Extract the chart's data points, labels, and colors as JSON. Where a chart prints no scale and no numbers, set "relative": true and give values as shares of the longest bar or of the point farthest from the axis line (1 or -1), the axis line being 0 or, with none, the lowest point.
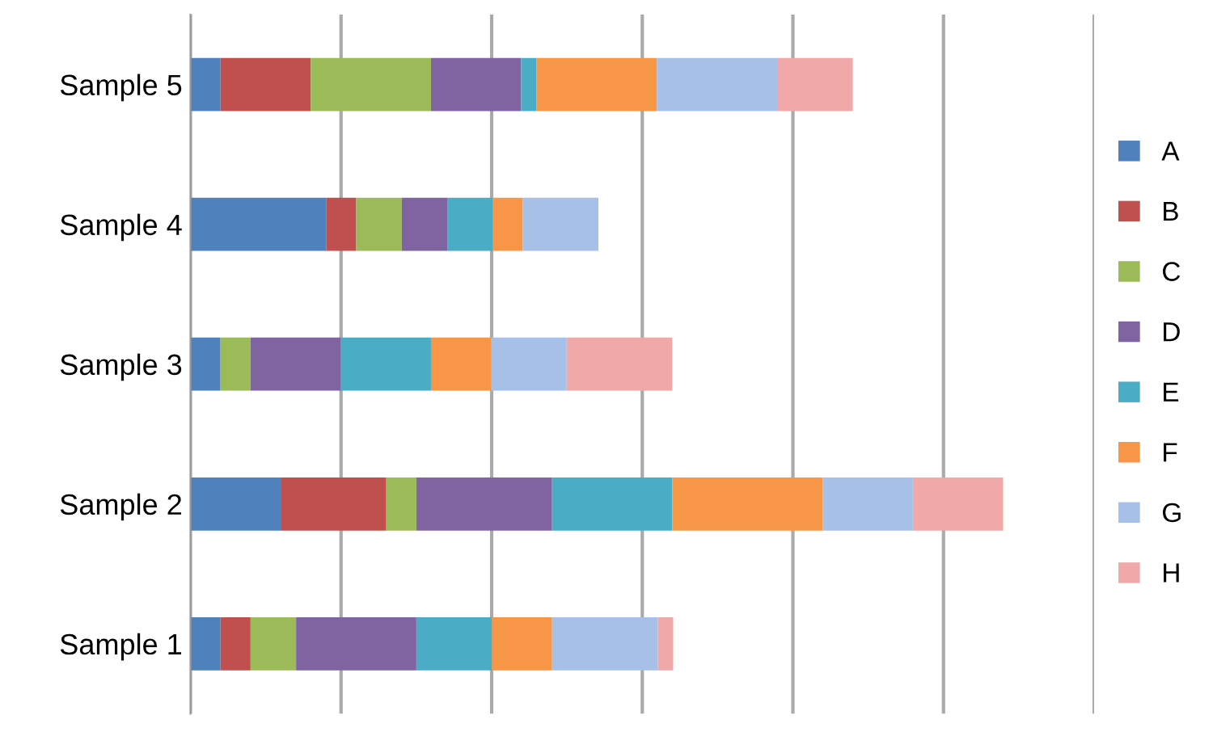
{
  "chart_data": {
    "type": "bar",
    "orientation": "horizontal",
    "stacked": true,
    "relative": true,
    "grid": "x",
    "legend": "right",
    "categories": [
      "Sample 5",
      "Sample 4",
      "Sample 3",
      "Sample 2",
      "Sample 1"
    ],
    "series": [
      {
        "name": "A",
        "color": "#4f81bd",
        "values": [
          0.037,
          0.167,
          0.037,
          0.111,
          0.037
        ]
      },
      {
        "name": "B",
        "color": "#c0504d",
        "values": [
          0.111,
          0.037,
          0,
          0.13,
          0.037
        ]
      },
      {
        "name": "C",
        "color": "#9bbb59",
        "values": [
          0.148,
          0.056,
          0.037,
          0.037,
          0.056
        ]
      },
      {
        "name": "D",
        "color": "#8064a2",
        "values": [
          0.111,
          0.056,
          0.111,
          0.167,
          0.148
        ]
      },
      {
        "name": "E",
        "color": "#4bacc6",
        "values": [
          0.019,
          0.056,
          0.111,
          0.148,
          0.093
        ]
      },
      {
        "name": "F",
        "color": "#f79646",
        "values": [
          0.148,
          0.037,
          0.074,
          0.185,
          0.074
        ]
      },
      {
        "name": "G",
        "color": "#a7c0e8",
        "values": [
          0.148,
          0.093,
          0.093,
          0.111,
          0.13
        ]
      },
      {
        "name": "H",
        "color": "#f0a8a8",
        "values": [
          0.093,
          0,
          0.13,
          0.111,
          0.019
        ]
      }
    ]
  }
}
